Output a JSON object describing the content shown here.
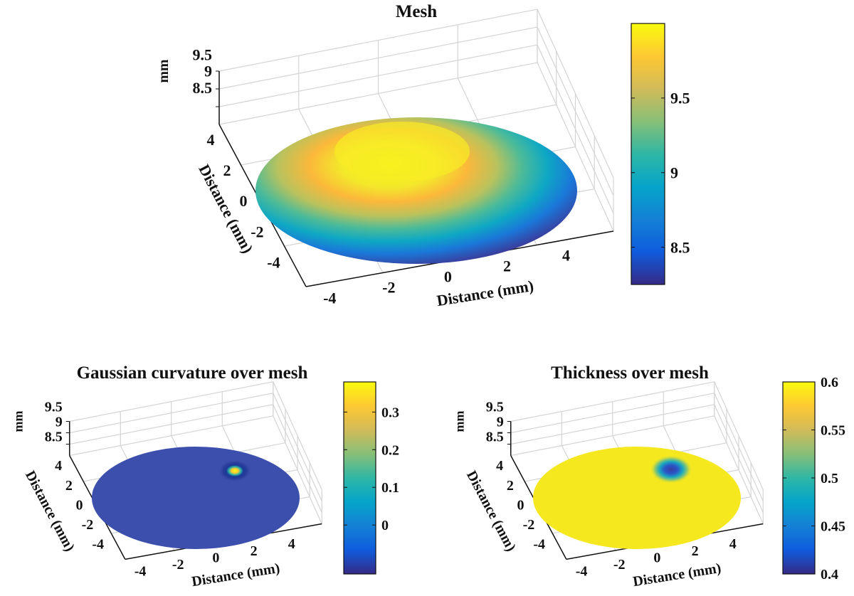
{
  "chart_data": [
    {
      "type": "surface",
      "title": "Mesh",
      "xlabel": "Distance (mm)",
      "ylabel": "Distance (mm)",
      "zlabel": "mm",
      "x_ticks": [
        "-4",
        "-2",
        "0",
        "2",
        "4"
      ],
      "y_ticks": [
        "4",
        "2",
        "0",
        "-2",
        "-4"
      ],
      "z_ticks": [
        "9.5",
        "9",
        "8.5"
      ],
      "colorbar": {
        "ticks": [
          "9.5",
          "9",
          "8.5"
        ],
        "tick_values": [
          9.5,
          9,
          8.5
        ],
        "clim": [
          8.25,
          10.0
        ],
        "colormap": "parula"
      },
      "grid": true,
      "surface_description_values": {
        "center_max": 10.0,
        "edge_min": 8.25
      }
    },
    {
      "type": "surface",
      "title": "Gaussian curvature over mesh",
      "xlabel": "Distance (mm)",
      "ylabel": "Distance (mm)",
      "zlabel": "mm",
      "x_ticks": [
        "-4",
        "-2",
        "0",
        "2",
        "4"
      ],
      "y_ticks": [
        "4",
        "2",
        "0",
        "-2",
        "-4"
      ],
      "z_ticks": [
        "9.5",
        "9",
        "8.5"
      ],
      "colorbar": {
        "ticks": [
          "0.3",
          "0.2",
          "0.1",
          "0"
        ],
        "tick_values": [
          0.3,
          0.2,
          0.1,
          0
        ],
        "clim": [
          -0.13,
          0.38
        ],
        "colormap": "parula"
      },
      "grid": true,
      "surface_description_values": {
        "background": 0,
        "peak": 0.38
      }
    },
    {
      "type": "surface",
      "title": "Thickness over mesh",
      "xlabel": "Distance (mm)",
      "ylabel": "Distance (mm)",
      "zlabel": "mm",
      "x_ticks": [
        "-4",
        "-2",
        "0",
        "2",
        "4"
      ],
      "y_ticks": [
        "4",
        "2",
        "0",
        "-2",
        "-4"
      ],
      "z_ticks": [
        "9.5",
        "9",
        "8.5"
      ],
      "colorbar": {
        "ticks": [
          "0.6",
          "0.55",
          "0.5",
          "0.45",
          "0.4"
        ],
        "tick_values": [
          0.6,
          0.55,
          0.5,
          0.45,
          0.4
        ],
        "clim": [
          0.4,
          0.6
        ],
        "colormap": "parula"
      },
      "grid": true,
      "surface_description_values": {
        "background": 0.6,
        "dip": 0.4
      }
    }
  ],
  "colors": {
    "parula": [
      "#352a87",
      "#0f5cdd",
      "#1481d6",
      "#06a4ca",
      "#2eb7a4",
      "#87bf77",
      "#d1bb59",
      "#fec832",
      "#f9fb0e"
    ],
    "grid": "#d4d4d4",
    "axis": "#111111"
  }
}
